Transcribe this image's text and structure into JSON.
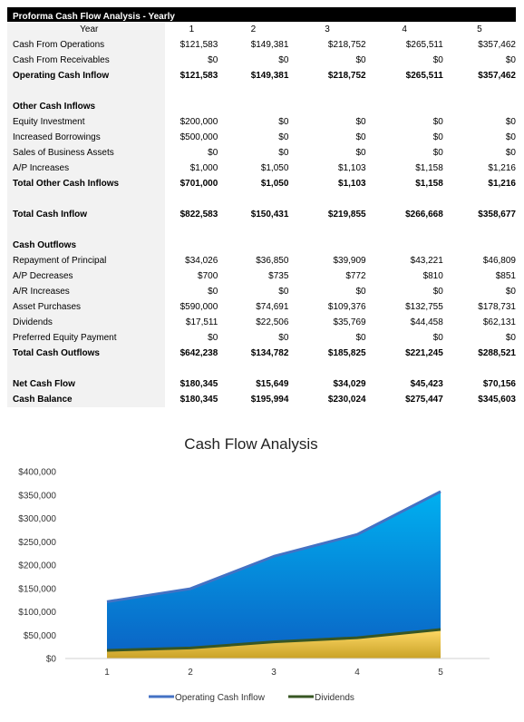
{
  "table": {
    "title": "Proforma Cash Flow Analysis - Yearly",
    "year_label": "Year",
    "years": [
      "1",
      "2",
      "3",
      "4",
      "5"
    ],
    "rows": [
      {
        "label": "Cash From Operations",
        "values": [
          "$121,583",
          "$149,381",
          "$218,752",
          "$265,511",
          "$357,462"
        ],
        "style": "normal"
      },
      {
        "label": "Cash From Receivables",
        "values": [
          "$0",
          "$0",
          "$0",
          "$0",
          "$0"
        ],
        "style": "normal"
      },
      {
        "label": "Operating Cash Inflow",
        "values": [
          "$121,583",
          "$149,381",
          "$218,752",
          "$265,511",
          "$357,462"
        ],
        "style": "bold"
      },
      {
        "label": "",
        "values": [
          "",
          "",
          "",
          "",
          ""
        ],
        "style": "blank"
      },
      {
        "label": "Other Cash Inflows",
        "values": [
          "",
          "",
          "",
          "",
          ""
        ],
        "style": "head"
      },
      {
        "label": "Equity Investment",
        "values": [
          "$200,000",
          "$0",
          "$0",
          "$0",
          "$0"
        ],
        "style": "normal"
      },
      {
        "label": "Increased Borrowings",
        "values": [
          "$500,000",
          "$0",
          "$0",
          "$0",
          "$0"
        ],
        "style": "normal"
      },
      {
        "label": "Sales of Business Assets",
        "values": [
          "$0",
          "$0",
          "$0",
          "$0",
          "$0"
        ],
        "style": "normal"
      },
      {
        "label": "A/P Increases",
        "values": [
          "$1,000",
          "$1,050",
          "$1,103",
          "$1,158",
          "$1,216"
        ],
        "style": "normal"
      },
      {
        "label": "Total Other Cash Inflows",
        "values": [
          "$701,000",
          "$1,050",
          "$1,103",
          "$1,158",
          "$1,216"
        ],
        "style": "bold"
      },
      {
        "label": "",
        "values": [
          "",
          "",
          "",
          "",
          ""
        ],
        "style": "blank"
      },
      {
        "label": "Total Cash Inflow",
        "values": [
          "$822,583",
          "$150,431",
          "$219,855",
          "$266,668",
          "$358,677"
        ],
        "style": "bold"
      },
      {
        "label": "",
        "values": [
          "",
          "",
          "",
          "",
          ""
        ],
        "style": "blank"
      },
      {
        "label": "Cash Outflows",
        "values": [
          "",
          "",
          "",
          "",
          ""
        ],
        "style": "head"
      },
      {
        "label": "Repayment of Principal",
        "values": [
          "$34,026",
          "$36,850",
          "$39,909",
          "$43,221",
          "$46,809"
        ],
        "style": "normal"
      },
      {
        "label": "A/P Decreases",
        "values": [
          "$700",
          "$735",
          "$772",
          "$810",
          "$851"
        ],
        "style": "normal"
      },
      {
        "label": "A/R Increases",
        "values": [
          "$0",
          "$0",
          "$0",
          "$0",
          "$0"
        ],
        "style": "normal"
      },
      {
        "label": "Asset Purchases",
        "values": [
          "$590,000",
          "$74,691",
          "$109,376",
          "$132,755",
          "$178,731"
        ],
        "style": "normal"
      },
      {
        "label": "Dividends",
        "values": [
          "$17,511",
          "$22,506",
          "$35,769",
          "$44,458",
          "$62,131"
        ],
        "style": "normal"
      },
      {
        "label": "Preferred Equity Payment",
        "values": [
          "$0",
          "$0",
          "$0",
          "$0",
          "$0"
        ],
        "style": "normal"
      },
      {
        "label": "Total Cash Outflows",
        "values": [
          "$642,238",
          "$134,782",
          "$185,825",
          "$221,245",
          "$288,521"
        ],
        "style": "bold"
      },
      {
        "label": "",
        "values": [
          "",
          "",
          "",
          "",
          ""
        ],
        "style": "blank"
      },
      {
        "label": "Net Cash Flow",
        "values": [
          "$180,345",
          "$15,649",
          "$34,029",
          "$45,423",
          "$70,156"
        ],
        "style": "bold"
      },
      {
        "label": "Cash Balance",
        "values": [
          "$180,345",
          "$195,994",
          "$230,024",
          "$275,447",
          "$345,603"
        ],
        "style": "bold"
      }
    ]
  },
  "chart_data": {
    "type": "area",
    "title": "Cash Flow Analysis",
    "categories": [
      "1",
      "2",
      "3",
      "4",
      "5"
    ],
    "series": [
      {
        "name": "Operating Cash Inflow",
        "values": [
          121583,
          149381,
          218752,
          265511,
          357462
        ],
        "color": "#4472c4",
        "fill": "#0b8fdf"
      },
      {
        "name": "Dividends",
        "values": [
          17511,
          22506,
          35769,
          44458,
          62131
        ],
        "color": "#375623",
        "fill": "#e0b52a"
      }
    ],
    "ylim": [
      0,
      400000
    ],
    "y_ticks": [
      "$0",
      "$50,000",
      "$100,000",
      "$150,000",
      "$200,000",
      "$250,000",
      "$300,000",
      "$350,000",
      "$400,000"
    ],
    "legend": "bottom",
    "grid": false
  }
}
